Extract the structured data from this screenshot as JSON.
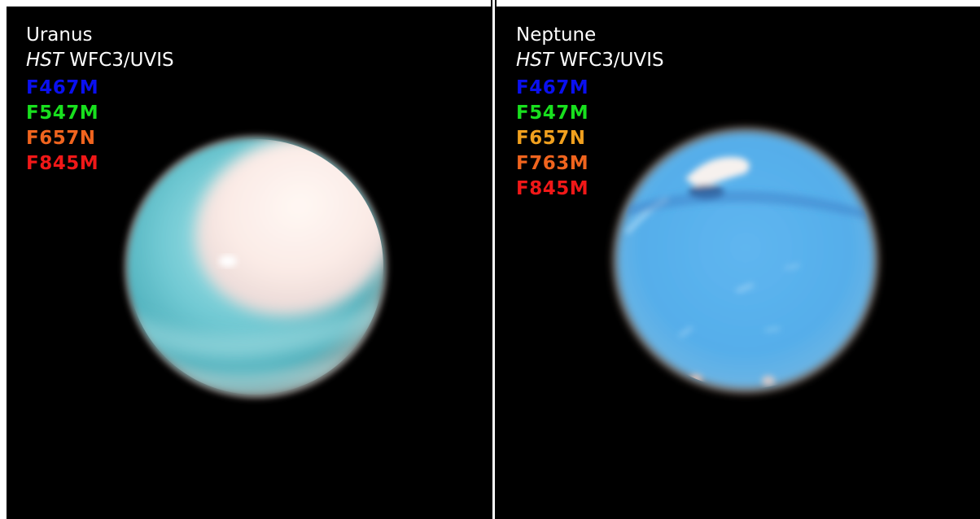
{
  "panels": [
    {
      "name": "Uranus",
      "instrument_prefix": "HST",
      "instrument_rest": " WFC3/UVIS",
      "filters": [
        {
          "label": "F467M",
          "color": "#0a10f0"
        },
        {
          "label": "F547M",
          "color": "#18e01e"
        },
        {
          "label": "F657N",
          "color": "#f0641e"
        },
        {
          "label": "F845M",
          "color": "#f01818"
        }
      ]
    },
    {
      "name": "Neptune",
      "instrument_prefix": "HST",
      "instrument_rest": " WFC3/UVIS",
      "filters": [
        {
          "label": "F467M",
          "color": "#0a10f0"
        },
        {
          "label": "F547M",
          "color": "#18e01e"
        },
        {
          "label": "F657N",
          "color": "#f0a01e"
        },
        {
          "label": "F763M",
          "color": "#f0641e"
        },
        {
          "label": "F845M",
          "color": "#f01818"
        }
      ]
    }
  ],
  "colors": {
    "background": "#000000",
    "divider": "#ffffff",
    "uranus_body": "#7fd0d8",
    "uranus_cap": "#fff0ec",
    "neptune_body": "#5ab4ee"
  }
}
